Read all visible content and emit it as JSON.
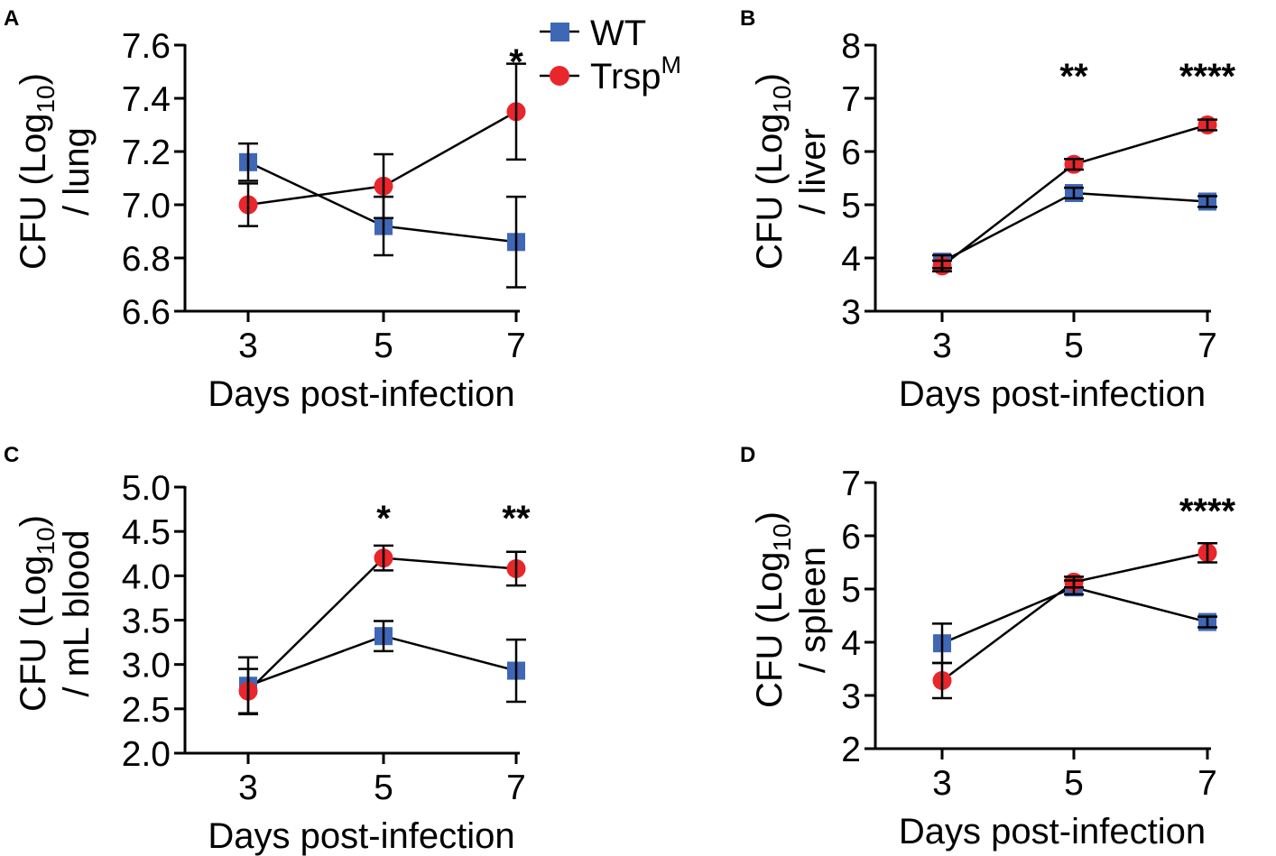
{
  "legend": {
    "entries": [
      {
        "name": "WT",
        "marker": "square",
        "color": "#3f67b5"
      },
      {
        "name": "Trsp",
        "superscript": "M",
        "marker": "circle",
        "color": "#e8262b"
      }
    ]
  },
  "colors": {
    "wt": "#3f67b5",
    "trsp": "#e8262b",
    "line": "#000000"
  },
  "chart_data": [
    {
      "panel": "A",
      "type": "line",
      "ylabel_line1": "CFU (Log",
      "ylabel_sub": "10",
      "ylabel_close": ")",
      "ylabel_line2": "/ lung",
      "xlabel": "Days post-infection",
      "categories": [
        "3",
        "5",
        "7"
      ],
      "ylim": [
        6.6,
        7.6
      ],
      "yticks": [
        6.6,
        6.8,
        7.0,
        7.2,
        7.4,
        7.6
      ],
      "ytick_labels": [
        "6.6",
        "6.8",
        "7.0",
        "7.2",
        "7.4",
        "7.6"
      ],
      "series": [
        {
          "name": "WT",
          "values": [
            7.16,
            6.92,
            6.86
          ],
          "errors": [
            0.07,
            0.11,
            0.17
          ]
        },
        {
          "name": "TrspM",
          "values": [
            7.0,
            7.07,
            7.35
          ],
          "errors": [
            0.08,
            0.12,
            0.18
          ]
        }
      ],
      "annotations": [
        "",
        "",
        "*"
      ]
    },
    {
      "panel": "B",
      "type": "line",
      "ylabel_line1": "CFU (Log",
      "ylabel_sub": "10",
      "ylabel_close": ")",
      "ylabel_line2": "/ liver",
      "xlabel": "Days post-infection",
      "categories": [
        "3",
        "5",
        "7"
      ],
      "ylim": [
        3,
        8
      ],
      "yticks": [
        3,
        4,
        5,
        6,
        7,
        8
      ],
      "ytick_labels": [
        "3",
        "4",
        "5",
        "6",
        "7",
        "8"
      ],
      "series": [
        {
          "name": "WT",
          "values": [
            3.93,
            5.22,
            5.06
          ],
          "errors": [
            0.12,
            0.1,
            0.1
          ]
        },
        {
          "name": "TrspM",
          "values": [
            3.85,
            5.76,
            6.5
          ],
          "errors": [
            0.1,
            0.1,
            0.1
          ]
        }
      ],
      "annotations": [
        "",
        "**",
        "****"
      ]
    },
    {
      "panel": "C",
      "type": "line",
      "ylabel_line1": "CFU (Log",
      "ylabel_sub": "10",
      "ylabel_close": ")",
      "ylabel_line2": "/ mL blood",
      "xlabel": "Days post-infection",
      "categories": [
        "3",
        "5",
        "7"
      ],
      "ylim": [
        2.0,
        5.0
      ],
      "yticks": [
        2.0,
        2.5,
        3.0,
        3.5,
        4.0,
        4.5,
        5.0
      ],
      "ytick_labels": [
        "2.0",
        "2.5",
        "3.0",
        "3.5",
        "4.0",
        "4.5",
        "5.0"
      ],
      "series": [
        {
          "name": "WT",
          "values": [
            2.76,
            3.32,
            2.93
          ],
          "errors": [
            0.32,
            0.17,
            0.35
          ]
        },
        {
          "name": "TrspM",
          "values": [
            2.7,
            4.2,
            4.08
          ],
          "errors": [
            0.25,
            0.14,
            0.19
          ]
        }
      ],
      "annotations": [
        "",
        "*",
        "**"
      ]
    },
    {
      "panel": "D",
      "type": "line",
      "ylabel_line1": "CFU (Log",
      "ylabel_sub": "10",
      "ylabel_close": ")",
      "ylabel_line2": "/ spleen",
      "xlabel": "Days post-infection",
      "categories": [
        "3",
        "5",
        "7"
      ],
      "ylim": [
        2,
        7
      ],
      "yticks": [
        2,
        3,
        4,
        5,
        6,
        7
      ],
      "ytick_labels": [
        "2",
        "3",
        "4",
        "5",
        "6",
        "7"
      ],
      "series": [
        {
          "name": "WT",
          "values": [
            3.98,
            5.03,
            4.38
          ],
          "errors": [
            0.37,
            0.13,
            0.1
          ]
        },
        {
          "name": "TrspM",
          "values": [
            3.28,
            5.13,
            5.68
          ],
          "errors": [
            0.33,
            0.1,
            0.18
          ]
        }
      ],
      "annotations": [
        "",
        "",
        "****"
      ]
    }
  ]
}
